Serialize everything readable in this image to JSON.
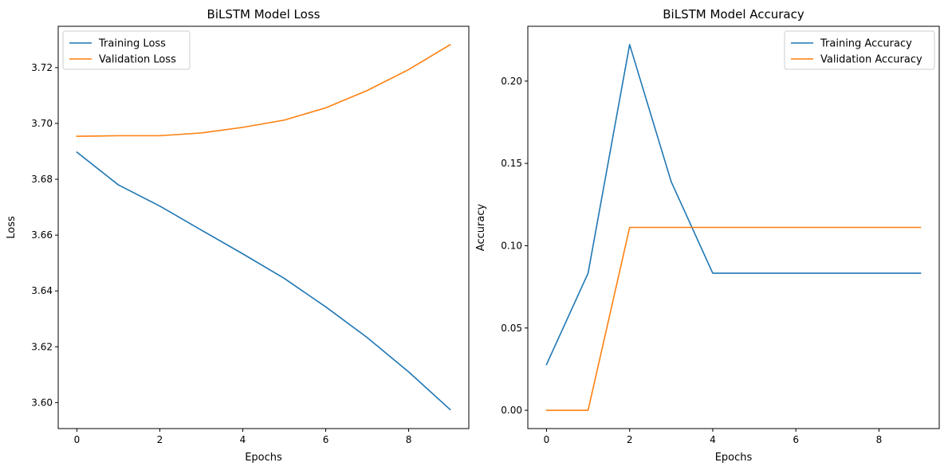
{
  "chart_data": [
    {
      "type": "line",
      "title": "BiLSTM Model Loss",
      "xlabel": "Epochs",
      "ylabel": "Loss",
      "xlim": [
        -0.45,
        9.45
      ],
      "ylim": [
        3.5907,
        3.7348
      ],
      "xticks": [
        0,
        2,
        4,
        6,
        8
      ],
      "yticks": [
        3.6,
        3.62,
        3.64,
        3.66,
        3.68,
        3.7,
        3.72
      ],
      "tick_decimals": 2,
      "legend": "top-left",
      "grid": false,
      "x": [
        0,
        1,
        2,
        3,
        4,
        5,
        6,
        7,
        8,
        9
      ],
      "series": [
        {
          "name": "Training Loss",
          "color": "#1f77b4",
          "values": [
            3.6897,
            3.678,
            3.6704,
            3.6618,
            3.6533,
            3.6445,
            3.6343,
            3.6233,
            3.611,
            3.5975
          ]
        },
        {
          "name": "Validation Loss",
          "color": "#ff7f0e",
          "values": [
            3.6954,
            3.6956,
            3.6956,
            3.6966,
            3.6986,
            3.7012,
            3.7056,
            3.7118,
            3.7193,
            3.7282
          ]
        }
      ]
    },
    {
      "type": "line",
      "title": "BiLSTM Model Accuracy",
      "xlabel": "Epochs",
      "ylabel": "Accuracy",
      "xlim": [
        -0.45,
        9.45
      ],
      "ylim": [
        -0.0111,
        0.2333
      ],
      "xticks": [
        0,
        2,
        4,
        6,
        8
      ],
      "yticks": [
        0.0,
        0.05,
        0.1,
        0.15,
        0.2
      ],
      "tick_decimals": 2,
      "legend": "top-right",
      "grid": false,
      "x": [
        0,
        1,
        2,
        3,
        4,
        5,
        6,
        7,
        8,
        9
      ],
      "series": [
        {
          "name": "Training Accuracy",
          "color": "#1f77b4",
          "values": [
            0.0278,
            0.0833,
            0.2222,
            0.1389,
            0.0833,
            0.0833,
            0.0833,
            0.0833,
            0.0833,
            0.0833
          ]
        },
        {
          "name": "Validation Accuracy",
          "color": "#ff7f0e",
          "values": [
            0.0,
            0.0,
            0.1111,
            0.1111,
            0.1111,
            0.1111,
            0.1111,
            0.1111,
            0.1111,
            0.1111
          ]
        }
      ]
    }
  ]
}
